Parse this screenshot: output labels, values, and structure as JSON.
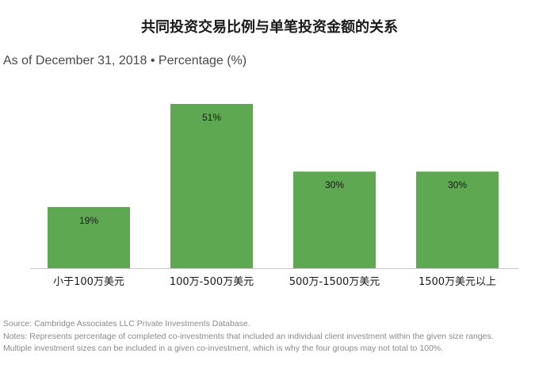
{
  "title": "共同投资交易比例与单笔投资金额的关系",
  "subtitle": "As of December 31, 2018 • Percentage (%)",
  "chart_data": {
    "type": "bar",
    "categories": [
      "小于100万美元",
      "100万-500万美元",
      "500万-1500万美元",
      "1500万美元以上"
    ],
    "values": [
      19,
      51,
      30,
      30
    ],
    "value_labels": [
      "19%",
      "51%",
      "30%",
      "30%"
    ],
    "ylim": [
      0,
      51
    ],
    "grid": false,
    "legend": "none",
    "bar_color": "#5ea852"
  },
  "footnotes": {
    "source": "Source: Cambridge Associates LLC Private Investments Database.",
    "notes": "Notes: Represents percentage of completed co-investments that included an individual client investment within the given size ranges.",
    "notes2": "Multiple investment sizes can be included in a given co-investment, which is why the four groups may not total to 100%."
  }
}
